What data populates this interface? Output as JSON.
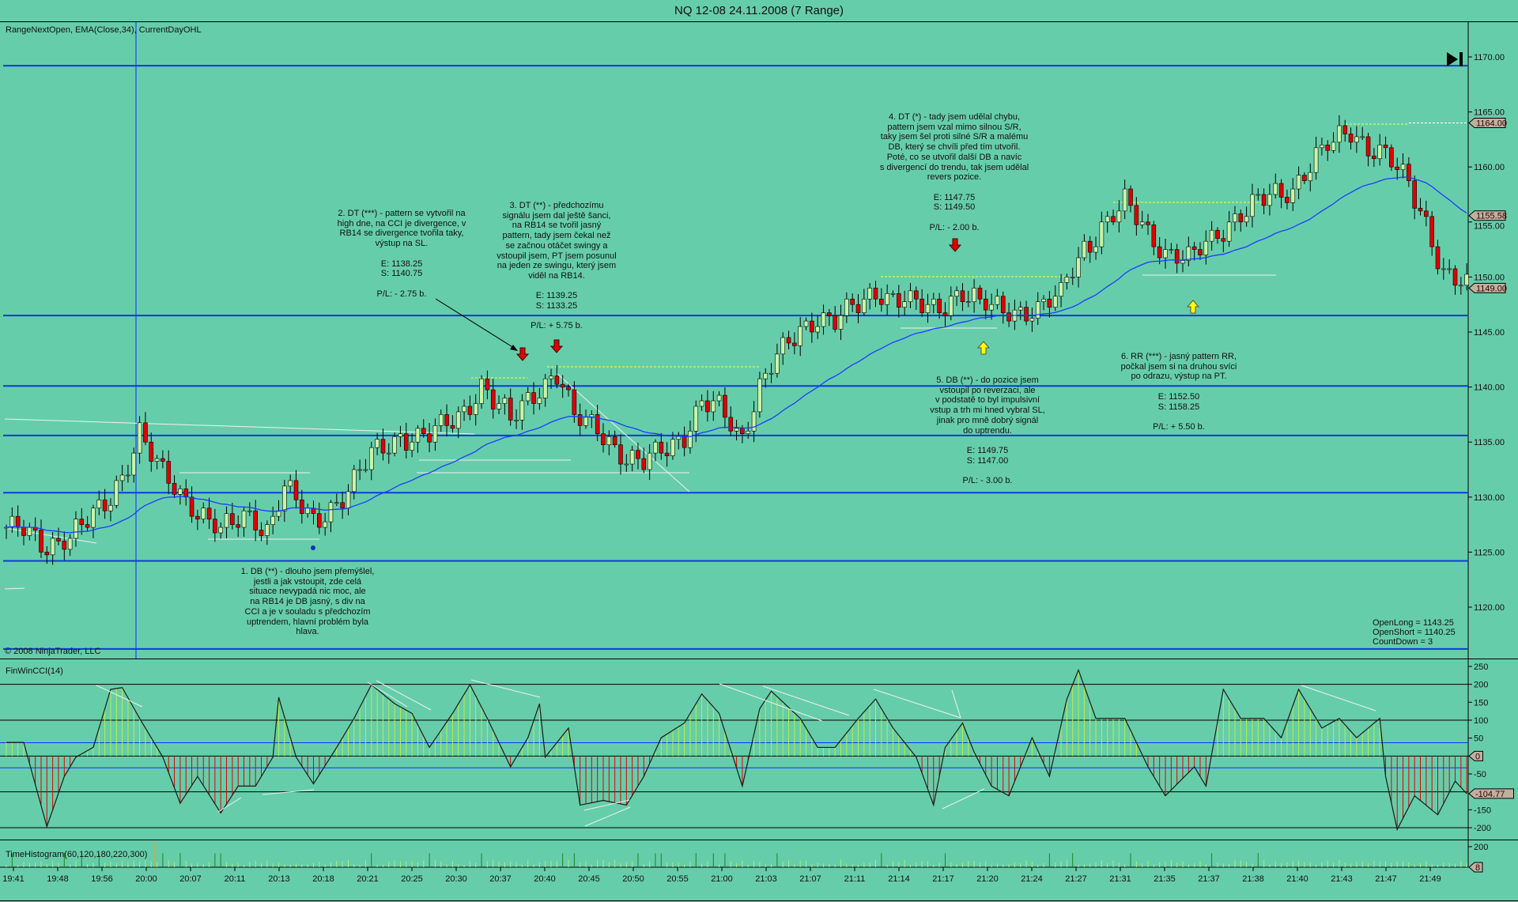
{
  "window": {
    "title": "NQ 12-08  24.11.2008 (7 Range)"
  },
  "price_panel": {
    "indicator_label": "RangeNextOpen, EMA(Close,34), CurrentDayOHL",
    "copyright": "© 2008 NinjaTrader, LLC",
    "status_lines": [
      "OpenLong = 1143.25",
      "OpenShort = 1140.25",
      "CountDown = 3"
    ],
    "axis_labels": [
      "1170.00",
      "1165.00",
      "1160.00",
      "1155.00",
      "1150.00",
      "1145.00",
      "1140.00",
      "1135.00",
      "1130.00",
      "1125.00",
      "1120.00"
    ],
    "tags": [
      {
        "text": "1164.00",
        "value": 1164.0
      },
      {
        "text": "1155.58",
        "value": 1155.58
      },
      {
        "text": "1149.00",
        "value": 1149.0
      }
    ],
    "annotations": [
      {
        "id": "trade-1",
        "text": "1. DB (**) - dlouho jsem přemýšlel,\njestli a jak vstoupit, zde celá\nsituace nevypadá nic moc, ale\nna RB14 je DB jasný, s div na\nCCI a je v souladu s předchozím\nuptrendem, hlavní problém byla\nhlava."
      },
      {
        "id": "trade-2",
        "text": "2. DT (***) - pattern se vytvořil na\nhigh dne, na CCI je divergence, v\nRB14 se divergence tvořila taky,\nvýstup na SL.\n\nE: 1138.25\nS: 1140.75\n\nP/L: - 2.75 b."
      },
      {
        "id": "trade-3",
        "text": "3. DT (**) - předchozímu\nsignálu jsem dal ještě šanci,\nna RB14 se tvořil jasný\npattern, tady jsem čekal než\nse začnou otáčet swingy a\nvstoupil jsem, PT jsem posunul\nna jeden ze swingu, který jsem\nviděl na RB14.\n\nE: 1139.25\nS: 1133.25\n\nP/L: + 5.75 b."
      },
      {
        "id": "trade-4",
        "text": "4. DT (*) - tady jsem udělal chybu,\npattern jsem vzal mimo silnou S/R,\ntaky jsem šel proti silné S/R a malému\nDB, který se chvíli před tím utvořil.\nPoté, co se utvořil další DB a navíc\ns divergencí do trendu, tak jsem udělal\nrevers pozice.\n\nE: 1147.75\nS: 1149.50\n\nP/L: - 2.00 b."
      },
      {
        "id": "trade-5",
        "text": "5. DB (**) - do pozice jsem\nvstoupil po reverzaci, ale\nv podstatě to byl impulsivní\nvstup a trh mi hned vybral SL,\njinak pro mně dobrý signál\ndo uptrendu.\n\nE: 1149.75\nS: 1147.00\n\nP/L: - 3.00 b."
      },
      {
        "id": "trade-6",
        "text": "6. RR (***) - jasný pattern RR,\npočkal jsem si na druhou svíci\npo odrazu, výstup na PT.\n\nE: 1152.50\nS: 1158.25\n\nP/L: + 5.50 b."
      }
    ]
  },
  "cci_panel": {
    "label": "FinWinCCI(14)",
    "axis_labels": [
      "250",
      "200",
      "150",
      "100",
      "50",
      "-50",
      "-150",
      "-200"
    ],
    "tags": [
      {
        "text": "0",
        "value": 0
      },
      {
        "text": "-104.77",
        "value": -104.77
      }
    ]
  },
  "histogram_panel": {
    "label": "TimeHistogram(60,120,180,220,300)",
    "axis_labels": [
      "200"
    ],
    "tag": "8"
  },
  "time_axis": [
    "19:41",
    "19:48",
    "19:56",
    "20:00",
    "20:07",
    "20:11",
    "20:13",
    "20:18",
    "20:21",
    "20:25",
    "20:30",
    "20:37",
    "20:40",
    "20:45",
    "20:50",
    "20:55",
    "21:00",
    "21:03",
    "21:07",
    "21:11",
    "21:14",
    "21:17",
    "21:20",
    "21:24",
    "21:27",
    "21:31",
    "21:35",
    "21:37",
    "21:38",
    "21:40",
    "21:43",
    "21:47",
    "21:49"
  ],
  "colors": {
    "background": "#66cdaa",
    "up_candle": "#c8f5a8",
    "down_candle": "#e00000",
    "ema": "#1a3cff",
    "level": "#0a3cdc",
    "cci_pos": "#b8f040",
    "cci_neg": "#e00000",
    "tag": "#c0b0a0"
  },
  "chart_data": {
    "type": "candlestick",
    "title": "NQ 12-08  24.11.2008 (7 Range)",
    "bar_count": 253,
    "ylim": [
      1117,
      1172
    ],
    "ema_period": 34,
    "price_path": [
      [
        2,
        1127.2
      ],
      [
        7,
        1125.4
      ],
      [
        12,
        1127
      ],
      [
        17,
        1129
      ],
      [
        20,
        1132
      ],
      [
        23,
        1136
      ],
      [
        27,
        1132
      ],
      [
        30,
        1130.2
      ],
      [
        37,
        1127
      ],
      [
        42,
        1128.3
      ],
      [
        45,
        1127
      ],
      [
        48,
        1131
      ],
      [
        53,
        1127.6
      ],
      [
        58,
        1130
      ],
      [
        63,
        1133.8
      ],
      [
        68,
        1135.5
      ],
      [
        73,
        1135.5
      ],
      [
        78,
        1137.3
      ],
      [
        82,
        1140
      ],
      [
        87,
        1137
      ],
      [
        91,
        1139.5
      ],
      [
        95,
        1141.2
      ],
      [
        98,
        1137.3
      ],
      [
        102,
        1136.5
      ],
      [
        107,
        1133.3
      ],
      [
        110,
        1132.9
      ],
      [
        113,
        1134.6
      ],
      [
        117,
        1135.5
      ],
      [
        120,
        1138.2
      ],
      [
        123,
        1138.2
      ],
      [
        127,
        1135.5
      ],
      [
        130,
        1140
      ],
      [
        133,
        1142.6
      ],
      [
        137,
        1145.2
      ],
      [
        140,
        1146.5
      ],
      [
        143,
        1146
      ],
      [
        147,
        1147.4
      ],
      [
        150,
        1148.7
      ],
      [
        155,
        1147.8
      ],
      [
        160,
        1147
      ],
      [
        165,
        1148.7
      ],
      [
        168,
        1147.5
      ],
      [
        173,
        1147
      ],
      [
        178,
        1147
      ],
      [
        182,
        1148.3
      ],
      [
        183,
        1150
      ],
      [
        186,
        1152.7
      ],
      [
        190,
        1154.9
      ],
      [
        193,
        1156.6
      ],
      [
        196,
        1154.9
      ],
      [
        200,
        1152.2
      ],
      [
        204,
        1151.4
      ],
      [
        208,
        1153.6
      ],
      [
        212,
        1155.3
      ],
      [
        217,
        1157.1
      ],
      [
        222,
        1158
      ],
      [
        225,
        1160.2
      ],
      [
        228,
        1161.9
      ],
      [
        232,
        1163.2
      ],
      [
        235,
        1161.9
      ],
      [
        238,
        1161
      ],
      [
        242,
        1158.4
      ],
      [
        245,
        1154.9
      ],
      [
        248,
        1150.5
      ],
      [
        252,
        1149
      ]
    ],
    "levels": [
      1169.2,
      1146.5,
      1140.1,
      1135.6,
      1130.4,
      1124.2,
      1116.2
    ],
    "cci_ylim": [
      -225,
      260
    ],
    "cci_gridlines": [
      200,
      100,
      0,
      -100,
      -200
    ],
    "cci_bands": [
      37,
      -33
    ],
    "cci_path": [
      [
        3,
        38
      ],
      [
        7,
        -197
      ],
      [
        10,
        -57
      ],
      [
        12,
        -3
      ],
      [
        15,
        24
      ],
      [
        18,
        186
      ],
      [
        20,
        191
      ],
      [
        23,
        105
      ],
      [
        27,
        -3
      ],
      [
        30,
        -132
      ],
      [
        33,
        -57
      ],
      [
        37,
        -159
      ],
      [
        40,
        -84
      ],
      [
        43,
        -84
      ],
      [
        46,
        -3
      ],
      [
        47,
        164
      ],
      [
        50,
        -3
      ],
      [
        53,
        -78
      ],
      [
        57,
        24
      ],
      [
        60,
        105
      ],
      [
        63,
        199
      ],
      [
        67,
        146
      ],
      [
        70,
        119
      ],
      [
        73,
        24
      ],
      [
        77,
        119
      ],
      [
        80,
        199
      ],
      [
        83,
        105
      ],
      [
        87,
        -30
      ],
      [
        90,
        51
      ],
      [
        92,
        146
      ],
      [
        93,
        -3
      ],
      [
        97,
        78
      ],
      [
        99,
        -137
      ],
      [
        103,
        -124
      ],
      [
        107,
        -137
      ],
      [
        110,
        -57
      ],
      [
        113,
        51
      ],
      [
        117,
        92
      ],
      [
        120,
        173
      ],
      [
        123,
        119
      ],
      [
        127,
        -84
      ],
      [
        130,
        132
      ],
      [
        132,
        181
      ],
      [
        137,
        105
      ],
      [
        140,
        24
      ],
      [
        143,
        24
      ],
      [
        147,
        105
      ],
      [
        150,
        159
      ],
      [
        153,
        78
      ],
      [
        157,
        -3
      ],
      [
        160,
        -137
      ],
      [
        162,
        24
      ],
      [
        165,
        92
      ],
      [
        167,
        11
      ],
      [
        170,
        -84
      ],
      [
        173,
        -111
      ],
      [
        177,
        51
      ],
      [
        180,
        -57
      ],
      [
        183,
        159
      ],
      [
        185,
        240
      ],
      [
        188,
        105
      ],
      [
        193,
        105
      ],
      [
        197,
        -30
      ],
      [
        200,
        -111
      ],
      [
        205,
        -30
      ],
      [
        207,
        -84
      ],
      [
        210,
        186
      ],
      [
        213,
        105
      ],
      [
        217,
        105
      ],
      [
        220,
        51
      ],
      [
        223,
        186
      ],
      [
        227,
        78
      ],
      [
        230,
        105
      ],
      [
        233,
        51
      ],
      [
        237,
        105
      ],
      [
        238,
        -57
      ],
      [
        240,
        -205
      ],
      [
        243,
        -111
      ],
      [
        247,
        -164
      ],
      [
        250,
        -70
      ],
      [
        252,
        -105
      ]
    ]
  }
}
